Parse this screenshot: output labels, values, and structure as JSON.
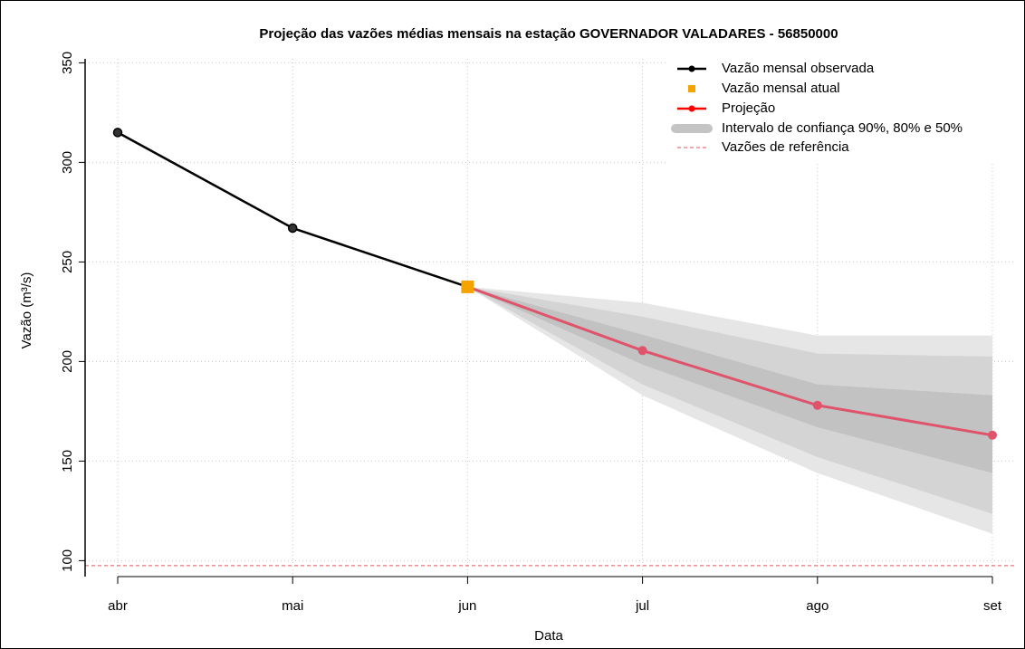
{
  "chart_data": {
    "type": "line",
    "title": "Projeção das vazões médias mensais na estação GOVERNADOR VALADARES - 56850000",
    "x_label": "Data",
    "y_label": "Vazão (m³/s)",
    "categories": [
      "abr",
      "mai",
      "jun",
      "jul",
      "ago",
      "set"
    ],
    "series": [
      {
        "name": "Vazão mensal observada",
        "color": "#000000",
        "values": [
          315,
          267,
          237.5,
          null,
          null,
          null
        ]
      },
      {
        "name": "Vazão mensal atual",
        "color": "#f5a300",
        "values": [
          null,
          null,
          237.5,
          null,
          null,
          null
        ]
      },
      {
        "name": "Projeção",
        "color": "#df536b",
        "legend_color": "#ff0000",
        "values": [
          null,
          null,
          237.5,
          205.5,
          178,
          163
        ]
      }
    ],
    "intervals": {
      "name": "Intervalo de confiança 90%, 80% e 50%",
      "legend_color": "#c4c4c4",
      "bands": [
        {
          "color": "#e6e6e6",
          "lower": [
            null,
            null,
            237.5,
            183,
            144,
            113.5
          ],
          "upper": [
            null,
            null,
            237.5,
            229.5,
            213,
            213
          ]
        },
        {
          "color": "#d4d4d4",
          "lower": [
            null,
            null,
            237.5,
            188.5,
            152,
            123.5
          ],
          "upper": [
            null,
            null,
            237.5,
            222.5,
            204,
            202.5
          ]
        },
        {
          "color": "#c2c2c2",
          "lower": [
            null,
            null,
            237.5,
            198.5,
            167,
            144
          ],
          "upper": [
            null,
            null,
            237.5,
            213.5,
            188.5,
            183
          ]
        }
      ]
    },
    "reference": {
      "name": "Vazões de referência",
      "color": "#e8505b",
      "value": 97.5
    },
    "ylim": [
      92,
      352
    ],
    "yticks": [
      100,
      150,
      200,
      250,
      300,
      350
    ],
    "grid": true
  }
}
